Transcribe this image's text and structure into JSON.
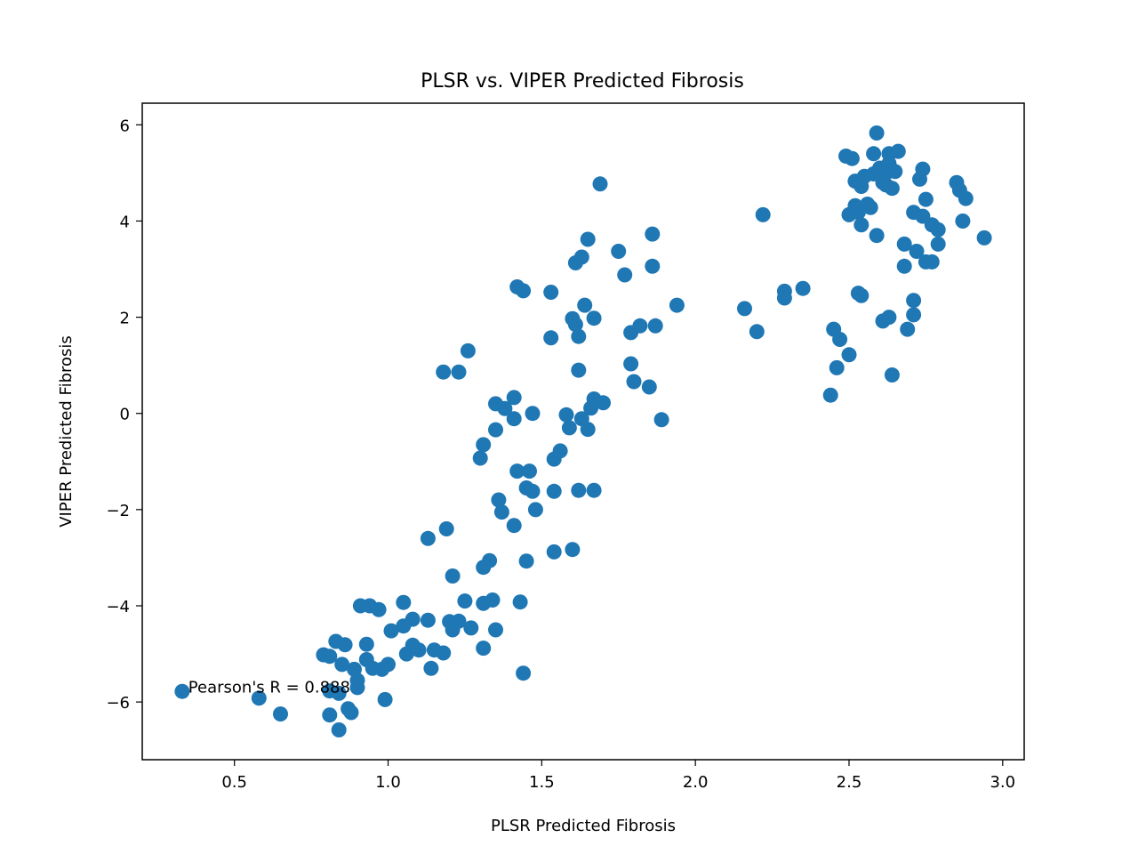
{
  "chart_data": {
    "type": "scatter",
    "title": "PLSR vs. VIPER Predicted Fibrosis",
    "xlabel": "PLSR Predicted Fibrosis",
    "ylabel": "VIPER Predicted Fibrosis",
    "xlim": [
      0.2,
      3.07
    ],
    "ylim": [
      -7.2,
      6.45
    ],
    "x_ticks": [
      0.5,
      1.0,
      1.5,
      2.0,
      2.5,
      3.0
    ],
    "x_tick_labels": [
      "0.5",
      "1.0",
      "1.5",
      "2.0",
      "2.5",
      "3.0"
    ],
    "y_ticks": [
      -6,
      -4,
      -2,
      0,
      2,
      4,
      6
    ],
    "y_tick_labels": [
      "−6",
      "−4",
      "−2",
      "0",
      "2",
      "4",
      "6"
    ],
    "grid": false,
    "point_color": "#1f77b4",
    "annotation": {
      "text": "Pearson's R = 0.888",
      "x": 0.35,
      "y": -5.8
    },
    "points": [
      [
        0.33,
        -5.78
      ],
      [
        0.58,
        -5.92
      ],
      [
        0.65,
        -6.25
      ],
      [
        0.79,
        -5.02
      ],
      [
        0.81,
        -5.05
      ],
      [
        0.81,
        -5.77
      ],
      [
        0.81,
        -6.27
      ],
      [
        0.83,
        -4.74
      ],
      [
        0.84,
        -5.82
      ],
      [
        0.84,
        -6.58
      ],
      [
        0.85,
        -5.22
      ],
      [
        0.86,
        -4.81
      ],
      [
        0.87,
        -6.14
      ],
      [
        0.88,
        -6.22
      ],
      [
        0.89,
        -5.32
      ],
      [
        0.9,
        -5.55
      ],
      [
        0.9,
        -5.7
      ],
      [
        0.91,
        -4.0
      ],
      [
        0.93,
        -4.8
      ],
      [
        0.93,
        -5.12
      ],
      [
        0.94,
        -4.0
      ],
      [
        0.95,
        -5.3
      ],
      [
        0.97,
        -4.08
      ],
      [
        0.98,
        -5.32
      ],
      [
        0.99,
        -5.95
      ],
      [
        1.01,
        -4.52
      ],
      [
        1.0,
        -5.22
      ],
      [
        1.05,
        -3.93
      ],
      [
        1.05,
        -4.42
      ],
      [
        1.06,
        -5.0
      ],
      [
        1.08,
        -4.28
      ],
      [
        1.08,
        -4.82
      ],
      [
        1.1,
        -4.92
      ],
      [
        1.13,
        -2.6
      ],
      [
        1.13,
        -4.3
      ],
      [
        1.14,
        -5.3
      ],
      [
        1.15,
        -4.92
      ],
      [
        1.18,
        -4.98
      ],
      [
        1.19,
        -2.4
      ],
      [
        1.2,
        -4.33
      ],
      [
        1.21,
        -3.38
      ],
      [
        1.21,
        -4.5
      ],
      [
        1.23,
        -4.32
      ],
      [
        1.25,
        -3.9
      ],
      [
        1.27,
        -4.46
      ],
      [
        1.18,
        0.86
      ],
      [
        1.23,
        0.86
      ],
      [
        1.26,
        1.3
      ],
      [
        1.3,
        -0.93
      ],
      [
        1.31,
        -0.65
      ],
      [
        1.31,
        -3.2
      ],
      [
        1.31,
        -3.95
      ],
      [
        1.31,
        -4.88
      ],
      [
        1.33,
        -3.06
      ],
      [
        1.34,
        -3.88
      ],
      [
        1.35,
        -4.5
      ],
      [
        1.35,
        0.2
      ],
      [
        1.35,
        -0.34
      ],
      [
        1.36,
        -1.8
      ],
      [
        1.37,
        -2.05
      ],
      [
        1.38,
        0.1
      ],
      [
        1.41,
        0.33
      ],
      [
        1.41,
        -0.11
      ],
      [
        1.41,
        -2.33
      ],
      [
        1.42,
        -1.2
      ],
      [
        1.43,
        -3.92
      ],
      [
        1.44,
        -5.4
      ],
      [
        1.42,
        2.63
      ],
      [
        1.44,
        2.55
      ],
      [
        1.45,
        -1.55
      ],
      [
        1.45,
        -3.07
      ],
      [
        1.46,
        -1.2
      ],
      [
        1.47,
        0.0
      ],
      [
        1.47,
        -1.62
      ],
      [
        1.48,
        -2.0
      ],
      [
        1.53,
        1.57
      ],
      [
        1.53,
        2.52
      ],
      [
        1.54,
        -0.95
      ],
      [
        1.54,
        -1.62
      ],
      [
        1.54,
        -2.88
      ],
      [
        1.56,
        -0.78
      ],
      [
        1.58,
        -0.03
      ],
      [
        1.59,
        -0.3
      ],
      [
        1.6,
        1.97
      ],
      [
        1.6,
        -2.83
      ],
      [
        1.61,
        3.13
      ],
      [
        1.61,
        1.85
      ],
      [
        1.62,
        -1.6
      ],
      [
        1.62,
        1.6
      ],
      [
        1.62,
        0.9
      ],
      [
        1.63,
        -0.11
      ],
      [
        1.63,
        3.25
      ],
      [
        1.64,
        2.25
      ],
      [
        1.65,
        3.62
      ],
      [
        1.65,
        -0.33
      ],
      [
        1.66,
        0.11
      ],
      [
        1.67,
        1.98
      ],
      [
        1.67,
        -1.6
      ],
      [
        1.67,
        0.3
      ],
      [
        1.69,
        4.77
      ],
      [
        1.7,
        0.22
      ],
      [
        1.75,
        3.37
      ],
      [
        1.77,
        2.88
      ],
      [
        1.79,
        1.03
      ],
      [
        1.79,
        1.68
      ],
      [
        1.8,
        0.66
      ],
      [
        1.82,
        1.82
      ],
      [
        1.85,
        0.55
      ],
      [
        1.86,
        3.73
      ],
      [
        1.86,
        3.06
      ],
      [
        1.87,
        1.82
      ],
      [
        1.89,
        -0.13
      ],
      [
        1.94,
        2.25
      ],
      [
        2.16,
        2.18
      ],
      [
        2.2,
        1.7
      ],
      [
        2.22,
        4.13
      ],
      [
        2.29,
        2.54
      ],
      [
        2.29,
        2.4
      ],
      [
        2.35,
        2.6
      ],
      [
        2.44,
        0.38
      ],
      [
        2.45,
        1.75
      ],
      [
        2.46,
        0.95
      ],
      [
        2.47,
        1.54
      ],
      [
        2.49,
        5.35
      ],
      [
        2.5,
        1.22
      ],
      [
        2.5,
        4.13
      ],
      [
        2.51,
        5.3
      ],
      [
        2.52,
        4.32
      ],
      [
        2.52,
        4.83
      ],
      [
        2.53,
        2.5
      ],
      [
        2.53,
        4.18
      ],
      [
        2.54,
        2.45
      ],
      [
        2.54,
        3.92
      ],
      [
        2.54,
        4.72
      ],
      [
        2.55,
        4.93
      ],
      [
        2.56,
        4.35
      ],
      [
        2.57,
        4.28
      ],
      [
        2.58,
        5.4
      ],
      [
        2.58,
        4.98
      ],
      [
        2.59,
        5.83
      ],
      [
        2.59,
        3.7
      ],
      [
        2.6,
        5.1
      ],
      [
        2.61,
        1.92
      ],
      [
        2.61,
        4.8
      ],
      [
        2.62,
        4.75
      ],
      [
        2.62,
        5.0
      ],
      [
        2.63,
        5.4
      ],
      [
        2.63,
        2.0
      ],
      [
        2.63,
        5.2
      ],
      [
        2.64,
        4.68
      ],
      [
        2.64,
        0.8
      ],
      [
        2.65,
        5.03
      ],
      [
        2.66,
        5.45
      ],
      [
        2.68,
        3.52
      ],
      [
        2.68,
        3.06
      ],
      [
        2.69,
        1.75
      ],
      [
        2.71,
        2.35
      ],
      [
        2.71,
        2.05
      ],
      [
        2.71,
        4.18
      ],
      [
        2.72,
        3.37
      ],
      [
        2.73,
        4.87
      ],
      [
        2.74,
        5.08
      ],
      [
        2.74,
        4.1
      ],
      [
        2.75,
        4.45
      ],
      [
        2.75,
        3.15
      ],
      [
        2.77,
        3.92
      ],
      [
        2.77,
        3.15
      ],
      [
        2.79,
        3.82
      ],
      [
        2.79,
        3.52
      ],
      [
        2.85,
        4.8
      ],
      [
        2.86,
        4.64
      ],
      [
        2.87,
        4.0
      ],
      [
        2.88,
        4.47
      ],
      [
        2.94,
        3.65
      ]
    ]
  }
}
